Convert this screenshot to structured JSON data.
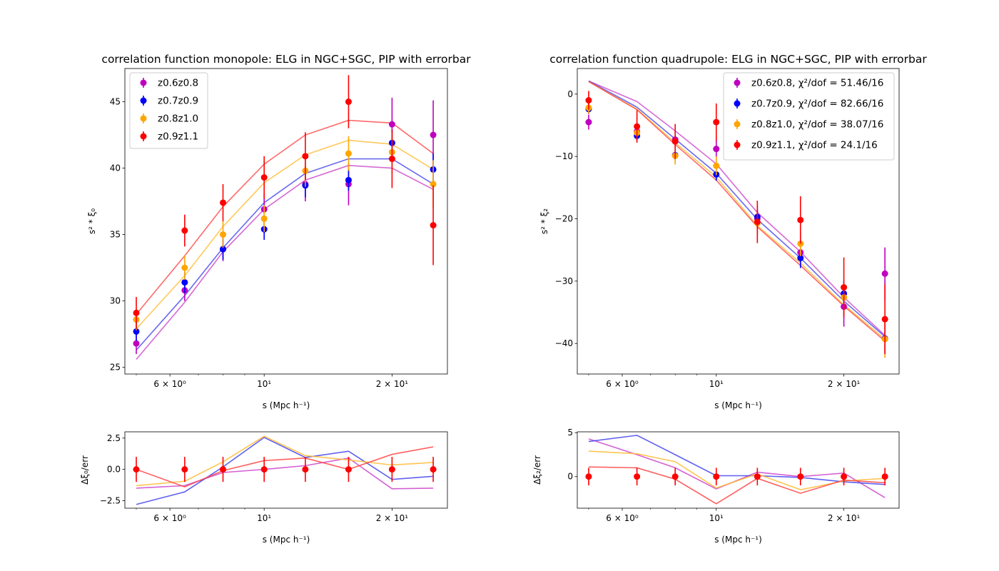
{
  "chart_data": [
    {
      "type": "scatter",
      "panel": "monopole-main",
      "title": "correlation function monopole: ELG in NGC+SGC, PIP with errorbar",
      "xlabel": "s (Mpc h⁻¹)",
      "ylabel": "s² * ξ₀",
      "xscale": "log",
      "xlim": [
        4.7,
        27.0
      ],
      "ylim": [
        24.5,
        47.5
      ],
      "x_ticks": [
        {
          "value": 6,
          "label": "6 × 10⁰"
        },
        {
          "value": 10,
          "label": "10¹"
        },
        {
          "value": 20,
          "label": "2 × 10¹"
        }
      ],
      "y_ticks": [
        25,
        30,
        35,
        40,
        45
      ],
      "legend_position": "upper-left",
      "x": [
        5.0,
        6.5,
        8.0,
        10.0,
        12.5,
        15.8,
        20.0,
        25.0
      ],
      "series": [
        {
          "name": "z0.6z0.8",
          "color": "#bf00bf",
          "line_color": "#cc44cc",
          "points": [
            26.8,
            30.8,
            33.9,
            36.9,
            38.8,
            38.8,
            43.3,
            42.5
          ],
          "errors": [
            0.8,
            0.8,
            0.9,
            1.2,
            1.3,
            1.6,
            2.0,
            2.6
          ],
          "model": [
            25.6,
            29.9,
            33.7,
            36.9,
            39.1,
            40.2,
            40.0,
            38.4
          ]
        },
        {
          "name": "z0.7z0.9",
          "color": "#0000ff",
          "line_color": "#4444ee",
          "points": [
            27.7,
            31.4,
            33.9,
            35.4,
            38.7,
            39.1,
            41.9,
            39.9
          ],
          "errors": [
            0.7,
            0.8,
            0.8,
            0.8,
            0.9,
            0.8,
            1.0,
            1.2
          ],
          "model": [
            26.3,
            30.4,
            34.0,
            37.4,
            39.6,
            40.7,
            40.7,
            38.8
          ]
        },
        {
          "name": "z0.8z1.0",
          "color": "#ffa500",
          "line_color": "#ffbb33",
          "points": [
            28.6,
            32.5,
            35.0,
            36.2,
            39.8,
            41.1,
            41.2,
            38.8
          ],
          "errors": [
            0.8,
            0.9,
            1.0,
            1.0,
            1.2,
            1.3,
            1.5,
            1.8
          ],
          "model": [
            27.9,
            31.9,
            35.6,
            38.9,
            41.0,
            42.1,
            41.8,
            39.9
          ]
        },
        {
          "name": "z0.9z1.1",
          "color": "#ff0000",
          "line_color": "#ff4444",
          "points": [
            29.1,
            35.3,
            37.4,
            39.3,
            40.9,
            45.0,
            40.7,
            35.7
          ],
          "errors": [
            1.2,
            1.2,
            1.4,
            1.6,
            1.8,
            2.0,
            2.2,
            3.0
          ],
          "model": [
            29.0,
            33.4,
            37.1,
            40.3,
            42.5,
            43.6,
            43.4,
            41.1
          ]
        }
      ]
    },
    {
      "type": "scatter",
      "panel": "quadrupole-main",
      "title": "correlation function quadrupole: ELG in NGC+SGC, PIP with errorbar",
      "xlabel": "s (Mpc h⁻¹)",
      "ylabel": "s² * ξ₂",
      "xscale": "log",
      "xlim": [
        4.7,
        27.0
      ],
      "ylim": [
        -44.9,
        4.1
      ],
      "x_ticks": [
        {
          "value": 6,
          "label": "6 × 10⁰"
        },
        {
          "value": 10,
          "label": "10¹"
        },
        {
          "value": 20,
          "label": "2 × 10¹"
        }
      ],
      "y_ticks": [
        0,
        -10,
        -20,
        -30,
        -40
      ],
      "legend_position": "upper-right",
      "x": [
        5.0,
        6.5,
        8.0,
        10.0,
        12.5,
        15.8,
        20.0,
        25.0
      ],
      "series": [
        {
          "name": "z0.6z0.8, χ²/dof = 51.46/16",
          "color": "#bf00bf",
          "line_color": "#cc44cc",
          "points": [
            -4.5,
            -6.0,
            -7.3,
            -8.8,
            -20.0,
            -25.4,
            -34.1,
            -28.8
          ],
          "errors": [
            1.2,
            1.5,
            1.6,
            1.8,
            2.0,
            2.2,
            3.2,
            4.2
          ],
          "model": [
            2.1,
            -1.2,
            -5.9,
            -11.2,
            -19.0,
            -25.3,
            -32.6,
            -38.7
          ]
        },
        {
          "name": "z0.7z0.9, χ²/dof = 82.66/16",
          "color": "#0000ff",
          "line_color": "#4444ee",
          "points": [
            -2.4,
            -6.7,
            -9.8,
            -12.9,
            -19.7,
            -26.3,
            -32.0,
            -39.2
          ],
          "errors": [
            0.8,
            0.8,
            0.9,
            1.0,
            1.2,
            1.6,
            2.0,
            2.5
          ],
          "model": [
            2.1,
            -2.1,
            -7.2,
            -12.7,
            -20.1,
            -26.3,
            -33.2,
            -38.9
          ]
        },
        {
          "name": "z0.8z1.0, χ²/dof = 38.07/16",
          "color": "#ffa500",
          "line_color": "#ffbb33",
          "points": [
            -2.2,
            -6.2,
            -9.9,
            -11.5,
            -20.7,
            -24.0,
            -32.6,
            -39.3
          ],
          "errors": [
            1.0,
            1.2,
            1.4,
            1.5,
            1.8,
            2.0,
            2.3,
            3.0
          ],
          "model": [
            2.0,
            -2.4,
            -7.8,
            -13.3,
            -21.1,
            -27.1,
            -33.8,
            -39.3
          ]
        },
        {
          "name": "z0.9z1.1, χ²/dof = 24.1/16",
          "color": "#ff0000",
          "line_color": "#ff4444",
          "points": [
            -1.0,
            -5.2,
            -7.6,
            -4.5,
            -20.5,
            -20.2,
            -31.0,
            -36.1
          ],
          "errors": [
            1.5,
            2.6,
            2.8,
            3.0,
            3.4,
            3.8,
            4.8,
            5.6
          ],
          "model": [
            2.0,
            -2.5,
            -8.1,
            -13.8,
            -21.3,
            -27.5,
            -34.0,
            -39.6
          ]
        }
      ]
    },
    {
      "type": "line",
      "panel": "monopole-residual",
      "xlabel": "s (Mpc h⁻¹)",
      "ylabel": "Δξ₀/err",
      "xscale": "log",
      "xlim": [
        4.7,
        27.0
      ],
      "ylim": [
        -3.1,
        3.0
      ],
      "x_ticks": [
        {
          "value": 6,
          "label": "6 × 10⁰"
        },
        {
          "value": 10,
          "label": "10¹"
        },
        {
          "value": 20,
          "label": "2 × 10¹"
        }
      ],
      "y_ticks": [
        {
          "value": 2.5,
          "label": "2.5"
        },
        {
          "value": 0.0,
          "label": "0.0"
        },
        {
          "value": -2.5,
          "label": "−2.5"
        }
      ],
      "x": [
        5.0,
        6.5,
        8.0,
        10.0,
        12.5,
        15.8,
        20.0,
        25.0
      ],
      "reference_points": {
        "values": [
          0,
          0,
          0,
          0,
          0,
          0,
          0,
          0
        ],
        "errors": [
          1,
          1,
          1,
          1,
          1,
          1,
          1,
          1
        ],
        "color": "#ff0000"
      },
      "series": [
        {
          "name": "z0.6z0.8",
          "color": "#cc44cc",
          "values": [
            -1.5,
            -1.3,
            -0.25,
            0.0,
            0.3,
            0.9,
            -1.55,
            -1.5
          ]
        },
        {
          "name": "z0.7z0.9",
          "color": "#4444ee",
          "values": [
            -2.8,
            -1.8,
            0.2,
            2.55,
            0.95,
            1.45,
            -0.8,
            -0.55
          ]
        },
        {
          "name": "z0.8z1.0",
          "color": "#ffbb33",
          "values": [
            -1.3,
            -0.95,
            0.6,
            2.65,
            1.1,
            0.75,
            0.35,
            0.55
          ]
        },
        {
          "name": "z0.9z1.1",
          "color": "#ff4444",
          "values": [
            0.0,
            -1.4,
            -0.1,
            0.7,
            0.9,
            0.0,
            1.2,
            1.8
          ]
        }
      ]
    },
    {
      "type": "line",
      "panel": "quadrupole-residual",
      "xlabel": "s (Mpc h⁻¹)",
      "ylabel": "Δξ₂/err",
      "xscale": "log",
      "xlim": [
        4.7,
        27.0
      ],
      "ylim": [
        -3.6,
        5.1
      ],
      "x_ticks": [
        {
          "value": 6,
          "label": "6 × 10⁰"
        },
        {
          "value": 10,
          "label": "10¹"
        },
        {
          "value": 20,
          "label": "2 × 10¹"
        }
      ],
      "y_ticks": [
        {
          "value": 5,
          "label": "5"
        },
        {
          "value": 0,
          "label": "0"
        }
      ],
      "x": [
        5.0,
        6.5,
        8.0,
        10.0,
        12.5,
        15.8,
        20.0,
        25.0
      ],
      "reference_points": {
        "values": [
          0,
          0,
          0,
          0,
          0,
          0,
          0,
          0
        ],
        "errors": [
          1,
          1,
          1,
          1,
          1,
          1,
          1,
          1
        ],
        "color": "#ff0000"
      },
      "series": [
        {
          "name": "z0.6z0.8",
          "color": "#cc44cc",
          "values": [
            4.3,
            2.5,
            1.0,
            -1.4,
            0.5,
            0.0,
            0.4,
            -2.4
          ]
        },
        {
          "name": "z0.7z0.9",
          "color": "#4444ee",
          "values": [
            4.0,
            4.7,
            2.5,
            0.1,
            0.1,
            -0.1,
            -0.6,
            -0.9
          ]
        },
        {
          "name": "z0.8z1.0",
          "color": "#ffbb33",
          "values": [
            2.9,
            2.6,
            1.7,
            -1.3,
            0.3,
            -1.5,
            -0.5,
            -0.2
          ]
        },
        {
          "name": "z0.9z1.1",
          "color": "#ff4444",
          "values": [
            1.1,
            1.0,
            -0.3,
            -3.1,
            -0.2,
            -1.9,
            -0.4,
            -0.7
          ]
        }
      ]
    }
  ]
}
